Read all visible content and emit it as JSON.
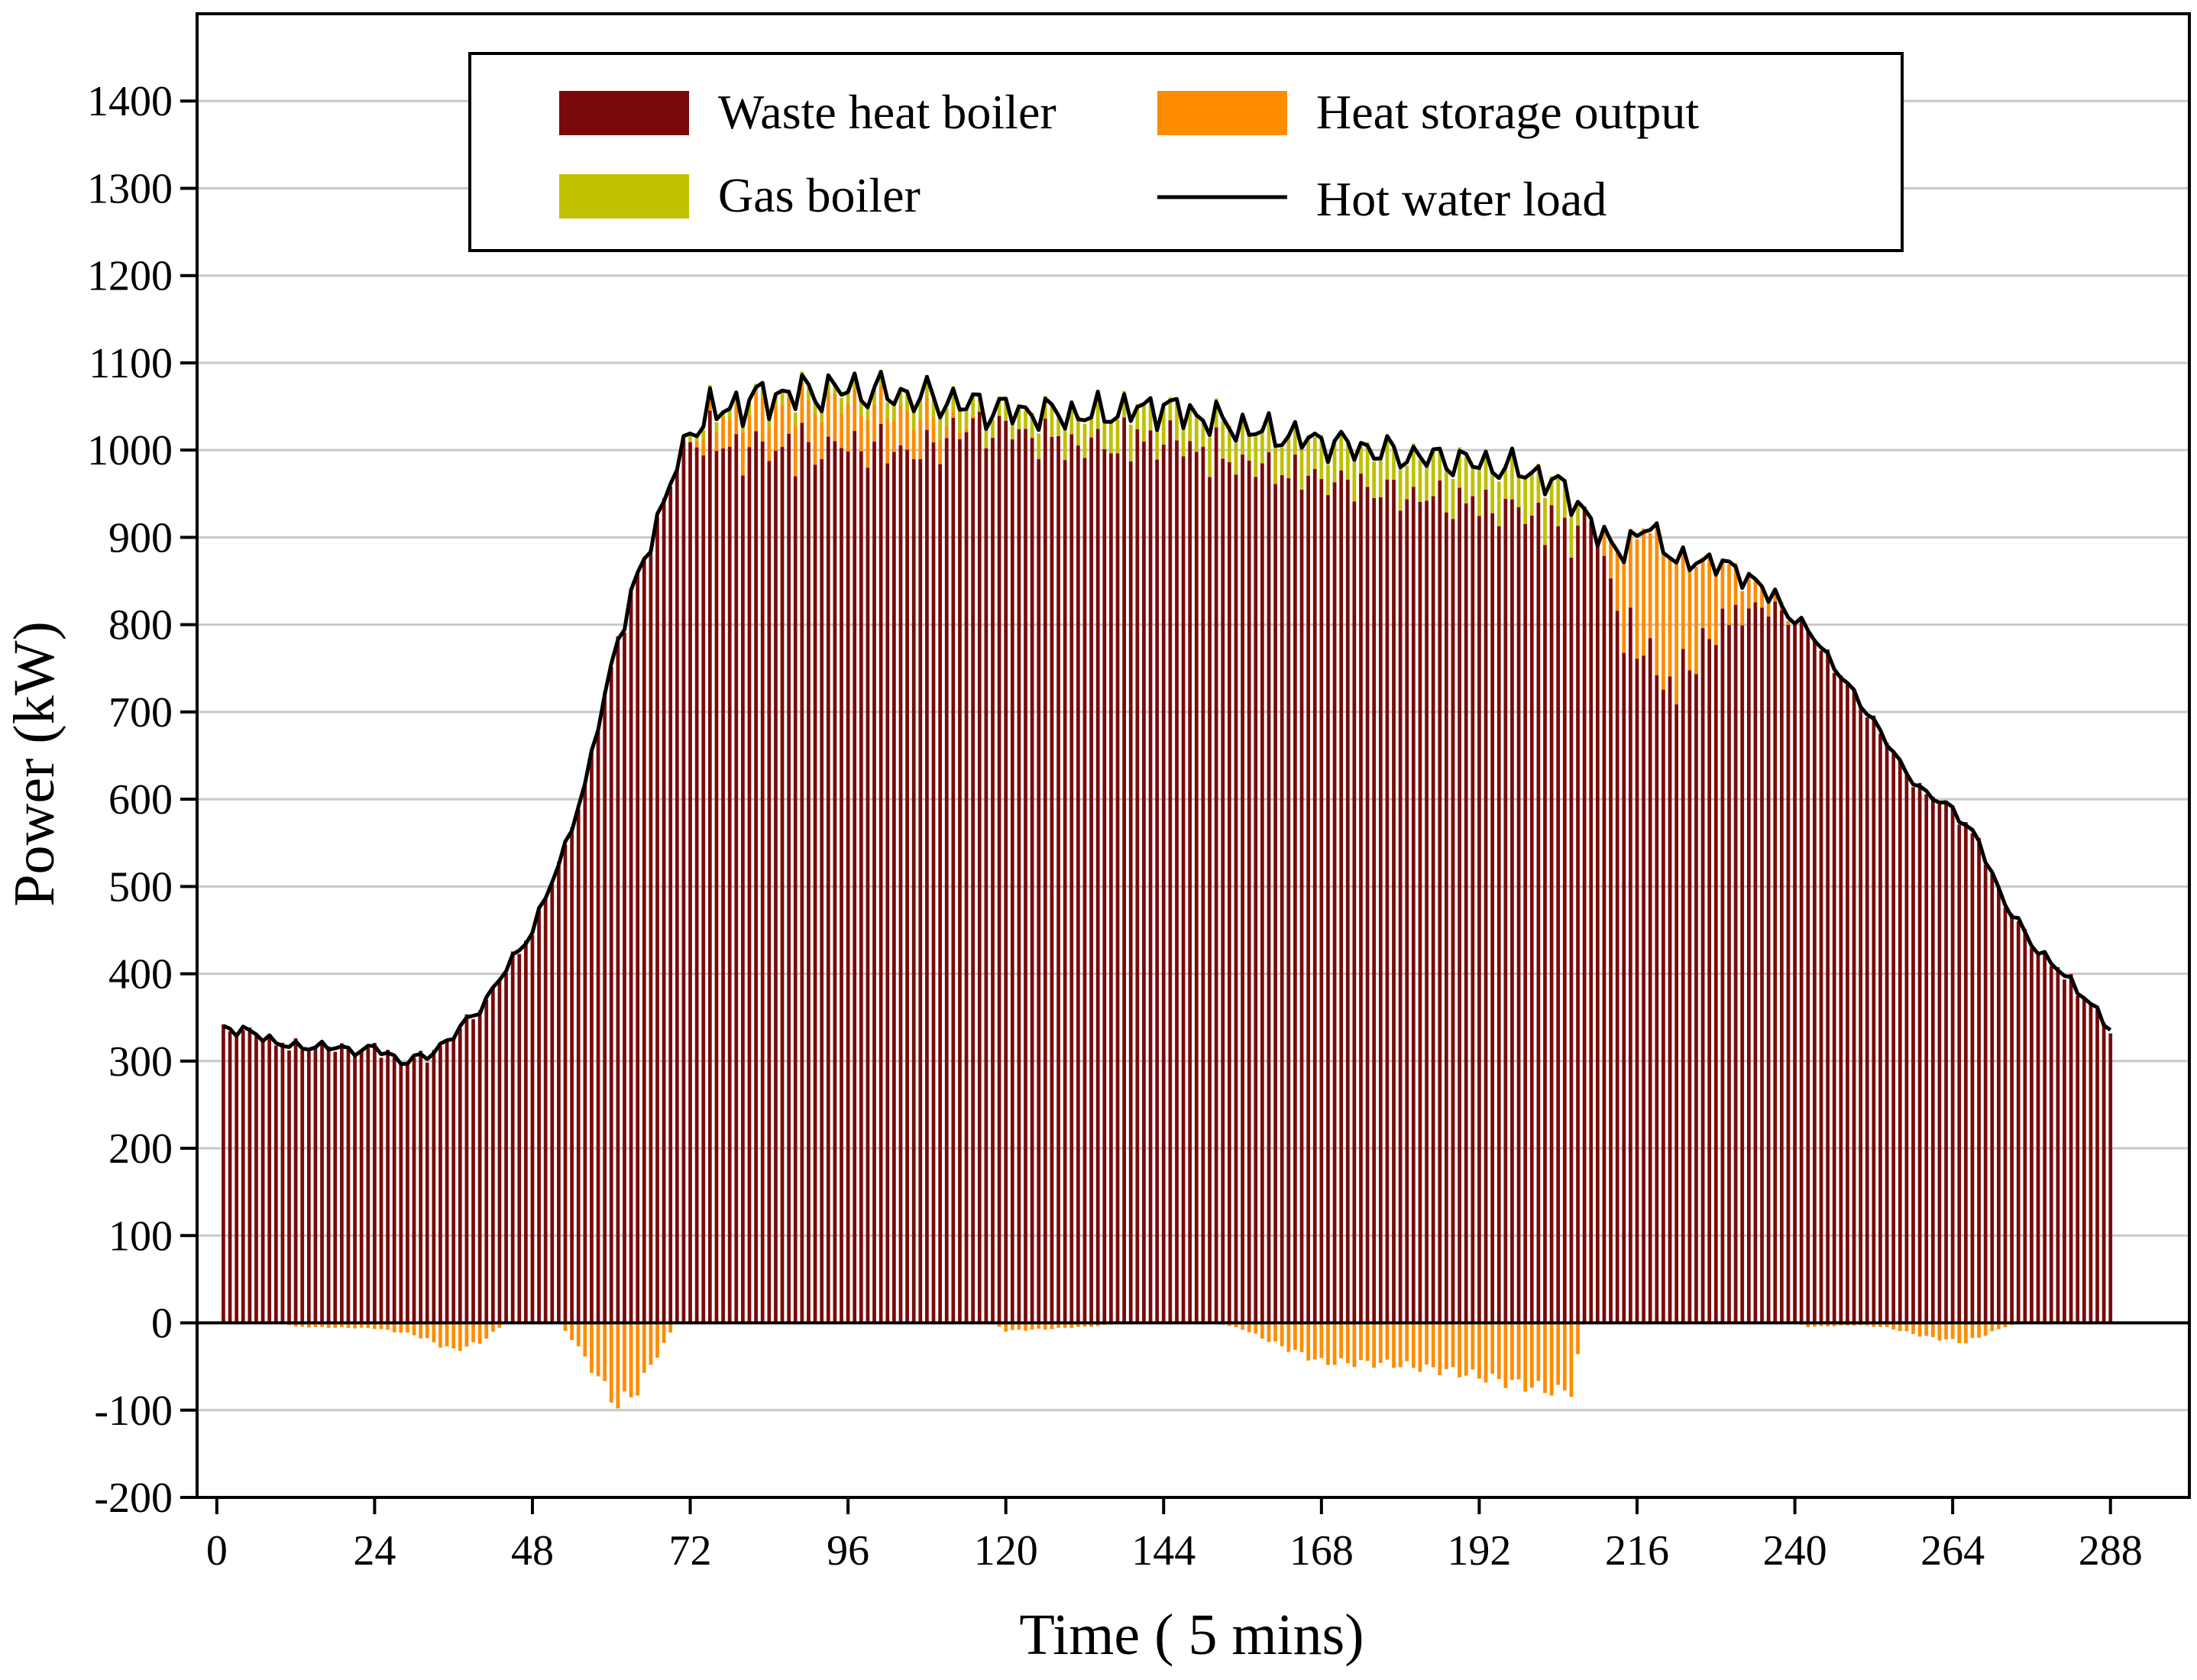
{
  "chart_data": {
    "type": "bar",
    "stacked": true,
    "title": "",
    "xlabel": "Time ( 5 mins)",
    "ylabel": "Power (kW)",
    "xlim": [
      -3,
      300
    ],
    "ylim": [
      -200,
      1500
    ],
    "xticks": [
      0,
      24,
      48,
      72,
      96,
      120,
      144,
      168,
      192,
      216,
      240,
      264,
      288
    ],
    "yticks": [
      -200,
      -100,
      0,
      100,
      200,
      300,
      400,
      500,
      600,
      700,
      800,
      900,
      1000,
      1100,
      1200,
      1300,
      1400
    ],
    "grid": true,
    "legend_position": "top-center",
    "x_count": 288,
    "series": [
      {
        "name": "Waste heat boiler",
        "kind": "bar",
        "color": "#7a0a0a"
      },
      {
        "name": "Heat storage output",
        "kind": "bar",
        "color": "#ff8c00"
      },
      {
        "name": "Gas boiler",
        "kind": "bar",
        "color": "#c0c000"
      },
      {
        "name": "Hot water load",
        "kind": "line",
        "color": "#000000"
      }
    ],
    "load_profile": [
      {
        "t": 0,
        "v": 340
      },
      {
        "t": 4,
        "v": 335
      },
      {
        "t": 8,
        "v": 325
      },
      {
        "t": 12,
        "v": 315
      },
      {
        "t": 16,
        "v": 318
      },
      {
        "t": 20,
        "v": 312
      },
      {
        "t": 24,
        "v": 315
      },
      {
        "t": 28,
        "v": 300
      },
      {
        "t": 32,
        "v": 305
      },
      {
        "t": 36,
        "v": 330
      },
      {
        "t": 40,
        "v": 360
      },
      {
        "t": 44,
        "v": 405
      },
      {
        "t": 48,
        "v": 450
      },
      {
        "t": 52,
        "v": 525
      },
      {
        "t": 56,
        "v": 615
      },
      {
        "t": 60,
        "v": 755
      },
      {
        "t": 64,
        "v": 855
      },
      {
        "t": 68,
        "v": 940
      },
      {
        "t": 72,
        "v": 1025
      },
      {
        "t": 76,
        "v": 1045
      },
      {
        "t": 84,
        "v": 1062
      },
      {
        "t": 96,
        "v": 1070
      },
      {
        "t": 108,
        "v": 1060
      },
      {
        "t": 120,
        "v": 1045
      },
      {
        "t": 132,
        "v": 1040
      },
      {
        "t": 144,
        "v": 1050
      },
      {
        "t": 156,
        "v": 1025
      },
      {
        "t": 168,
        "v": 1010
      },
      {
        "t": 180,
        "v": 995
      },
      {
        "t": 192,
        "v": 985
      },
      {
        "t": 200,
        "v": 975
      },
      {
        "t": 206,
        "v": 950
      },
      {
        "t": 210,
        "v": 905
      },
      {
        "t": 214,
        "v": 885
      },
      {
        "t": 218,
        "v": 915
      },
      {
        "t": 222,
        "v": 870
      },
      {
        "t": 226,
        "v": 875
      },
      {
        "t": 232,
        "v": 860
      },
      {
        "t": 236,
        "v": 835
      },
      {
        "t": 240,
        "v": 810
      },
      {
        "t": 244,
        "v": 775
      },
      {
        "t": 248,
        "v": 730
      },
      {
        "t": 252,
        "v": 690
      },
      {
        "t": 256,
        "v": 640
      },
      {
        "t": 260,
        "v": 605
      },
      {
        "t": 264,
        "v": 590
      },
      {
        "t": 268,
        "v": 550
      },
      {
        "t": 272,
        "v": 480
      },
      {
        "t": 276,
        "v": 435
      },
      {
        "t": 280,
        "v": 405
      },
      {
        "t": 284,
        "v": 375
      },
      {
        "t": 288,
        "v": 335
      }
    ],
    "load_noise_amplitude": [
      {
        "from": 0,
        "to": 60,
        "amp": 8
      },
      {
        "from": 60,
        "to": 72,
        "amp": 15
      },
      {
        "from": 72,
        "to": 120,
        "amp": 32
      },
      {
        "from": 120,
        "to": 210,
        "amp": 26
      },
      {
        "from": 210,
        "to": 240,
        "amp": 18
      },
      {
        "from": 240,
        "to": 288,
        "amp": 8
      }
    ],
    "storage_discharge_profile": [
      {
        "t": 72,
        "v": 0
      },
      {
        "t": 74,
        "v": 20
      },
      {
        "t": 80,
        "v": 50
      },
      {
        "t": 90,
        "v": 60
      },
      {
        "t": 100,
        "v": 55
      },
      {
        "t": 108,
        "v": 45
      },
      {
        "t": 112,
        "v": 10
      },
      {
        "t": 116,
        "v": 0
      },
      {
        "t": 210,
        "v": 0
      },
      {
        "t": 212,
        "v": 60
      },
      {
        "t": 216,
        "v": 150
      },
      {
        "t": 220,
        "v": 190
      },
      {
        "t": 224,
        "v": 140
      },
      {
        "t": 228,
        "v": 90
      },
      {
        "t": 232,
        "v": 50
      },
      {
        "t": 236,
        "v": 20
      },
      {
        "t": 240,
        "v": 0
      }
    ],
    "storage_charge_profile": [
      {
        "t": 10,
        "v": 0
      },
      {
        "t": 12,
        "v": -5
      },
      {
        "t": 24,
        "v": -7
      },
      {
        "t": 30,
        "v": -15
      },
      {
        "t": 36,
        "v": -35
      },
      {
        "t": 40,
        "v": -25
      },
      {
        "t": 44,
        "v": 0
      },
      {
        "t": 52,
        "v": 0
      },
      {
        "t": 54,
        "v": -20
      },
      {
        "t": 58,
        "v": -70
      },
      {
        "t": 61,
        "v": -105
      },
      {
        "t": 64,
        "v": -85
      },
      {
        "t": 67,
        "v": -40
      },
      {
        "t": 70,
        "v": 0
      },
      {
        "t": 118,
        "v": 0
      },
      {
        "t": 120,
        "v": -10
      },
      {
        "t": 126,
        "v": -8
      },
      {
        "t": 134,
        "v": -4
      },
      {
        "t": 138,
        "v": 0
      },
      {
        "t": 152,
        "v": 0
      },
      {
        "t": 156,
        "v": -8
      },
      {
        "t": 162,
        "v": -30
      },
      {
        "t": 168,
        "v": -50
      },
      {
        "t": 178,
        "v": -52
      },
      {
        "t": 188,
        "v": -62
      },
      {
        "t": 198,
        "v": -78
      },
      {
        "t": 204,
        "v": -88
      },
      {
        "t": 206,
        "v": -85
      },
      {
        "t": 208,
        "v": 0
      },
      {
        "t": 240,
        "v": 0
      },
      {
        "t": 242,
        "v": -5
      },
      {
        "t": 250,
        "v": -3
      },
      {
        "t": 254,
        "v": -6
      },
      {
        "t": 260,
        "v": -18
      },
      {
        "t": 266,
        "v": -25
      },
      {
        "t": 272,
        "v": -5
      },
      {
        "t": 274,
        "v": 0
      }
    ],
    "gas_boiler_profile": [
      {
        "t": 70,
        "v": 0
      },
      {
        "t": 72,
        "v": 10
      },
      {
        "t": 100,
        "v": 20
      },
      {
        "t": 110,
        "v": 30
      },
      {
        "t": 120,
        "v": 25
      },
      {
        "t": 130,
        "v": 40
      },
      {
        "t": 150,
        "v": 45
      },
      {
        "t": 165,
        "v": 50
      },
      {
        "t": 190,
        "v": 55
      },
      {
        "t": 206,
        "v": 55
      },
      {
        "t": 208,
        "v": 0
      }
    ]
  },
  "legend": {
    "waste_heat_boiler": "Waste heat boiler",
    "heat_storage_output": "Heat storage output",
    "gas_boiler": "Gas boiler",
    "hot_water_load": "Hot water load"
  }
}
